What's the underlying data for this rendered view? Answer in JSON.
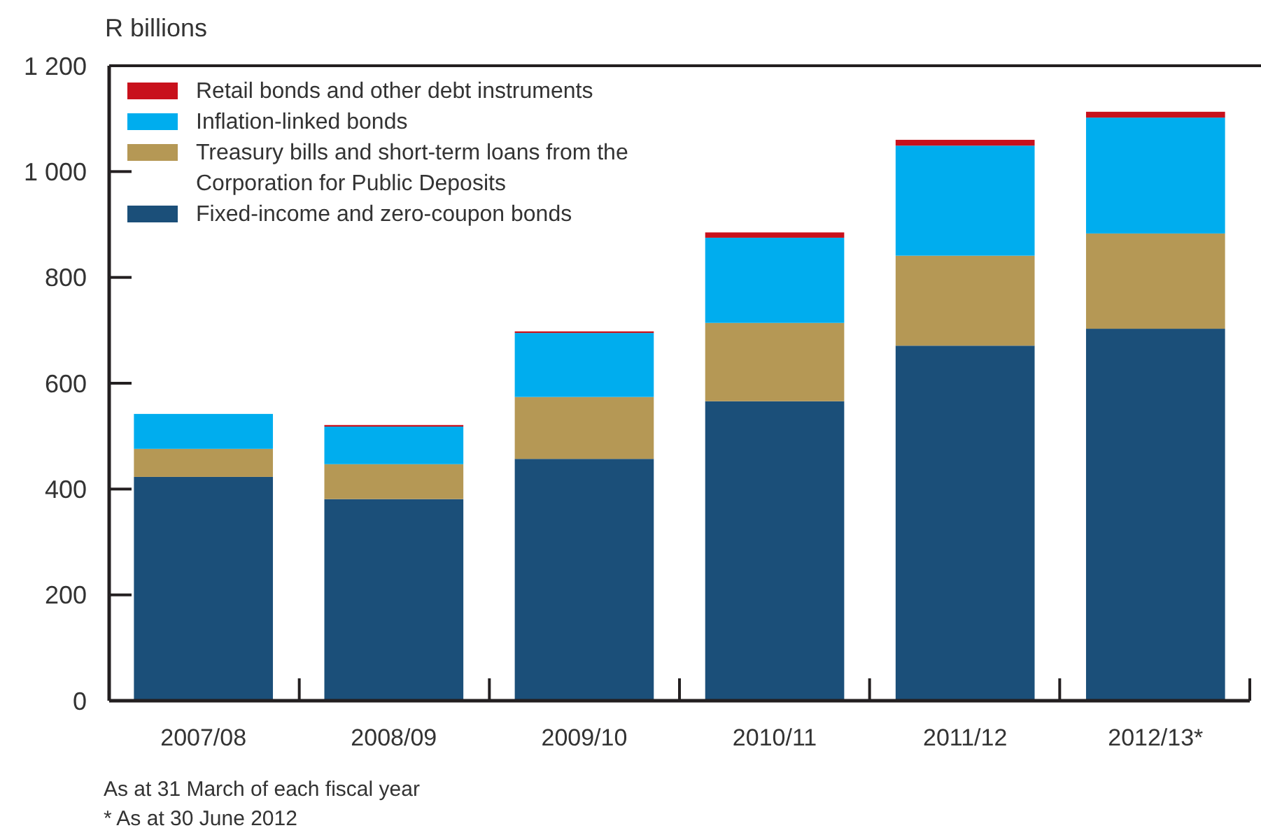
{
  "chart_data": {
    "type": "bar",
    "ylabel": "R billions",
    "categories": [
      "2007/08",
      "2008/09",
      "2009/10",
      "2010/11",
      "2011/12",
      "2012/13*"
    ],
    "stacked": true,
    "series": [
      {
        "name": "Fixed-income and zero-coupon bonds",
        "color": "#1b4f79",
        "values": [
          423,
          381,
          457,
          566,
          671,
          703
        ]
      },
      {
        "name": "Treasury bills and short-term loans from the Corporation for Public Deposits",
        "color": "#b59855",
        "values": [
          53,
          66,
          117,
          148,
          170,
          180
        ]
      },
      {
        "name": "Inflation-linked bonds",
        "color": "#00adee",
        "values": [
          66,
          71,
          121,
          161,
          208,
          219
        ]
      },
      {
        "name": "Retail bonds and other debt instruments",
        "color": "#c8111c",
        "values": [
          0,
          3,
          3,
          10,
          11,
          11
        ]
      }
    ],
    "ylim": [
      0,
      1200
    ],
    "yticks": [
      0,
      {
        "value": 200,
        "label": "200"
      },
      {
        "value": 400,
        "label": "400"
      },
      {
        "value": 600,
        "label": "600"
      },
      {
        "value": 800,
        "label": "800"
      },
      {
        "value": 1000,
        "label": "1 000"
      },
      {
        "value": 1200,
        "label": "1 200"
      }
    ],
    "legend": "top left",
    "grid": false,
    "annotations": [
      "As at 31 March of each fiscal year",
      "* As at 30 June 2012"
    ]
  }
}
